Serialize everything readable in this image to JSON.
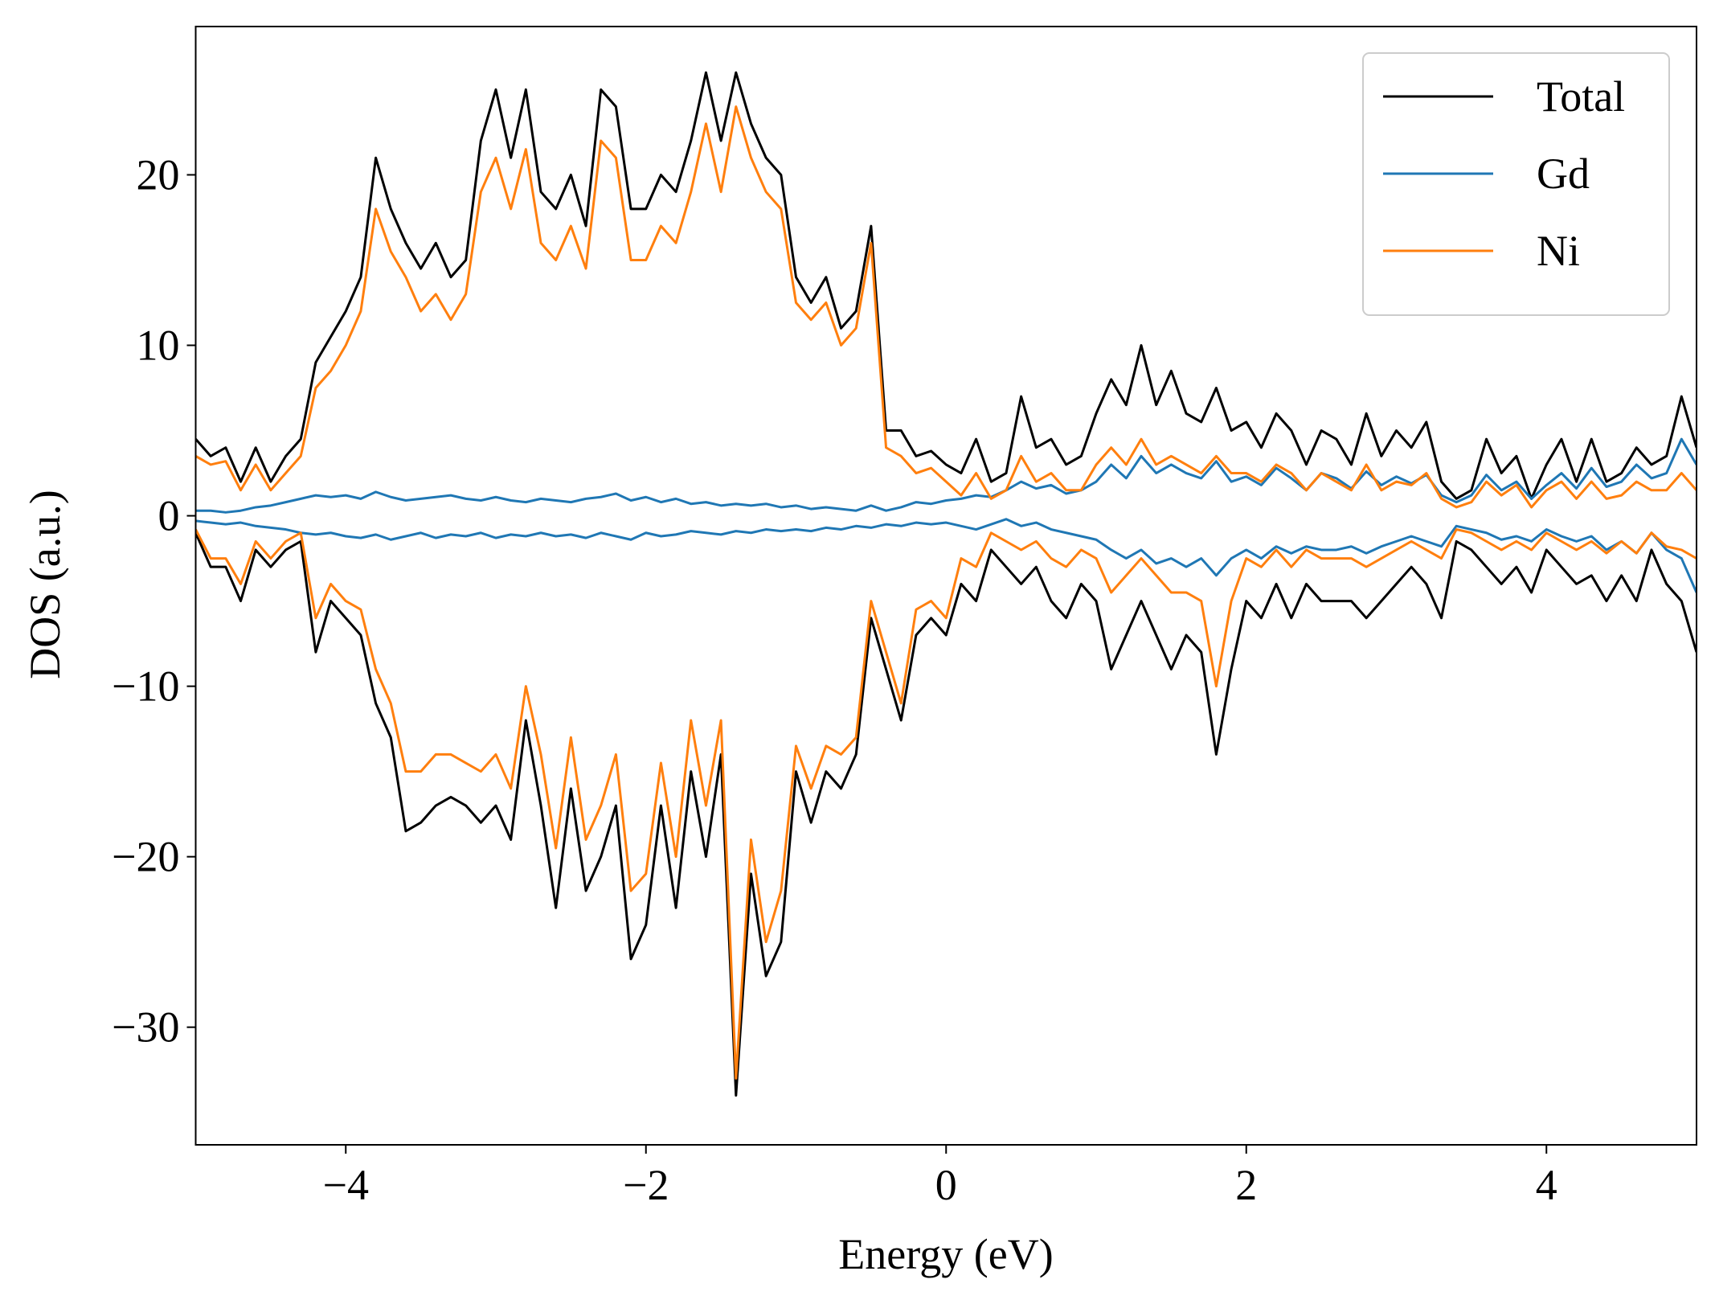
{
  "chart_data": {
    "type": "line",
    "xlabel": "Energy (eV)",
    "ylabel": "DOS (a.u.)",
    "xlim": [
      -5,
      5
    ],
    "ylim": [
      -36.9,
      28.7
    ],
    "xticks": [
      {
        "value": -4,
        "label": "−4"
      },
      {
        "value": -2,
        "label": "−2"
      },
      0,
      2,
      4
    ],
    "yticks": [
      {
        "value": -30,
        "label": "−30"
      },
      {
        "value": -20,
        "label": "−20"
      },
      {
        "value": -10,
        "label": "−10"
      },
      0,
      10,
      20
    ],
    "grid": false,
    "legend": "upper right",
    "x": [
      -5,
      -4.9,
      -4.8,
      -4.7,
      -4.6,
      -4.5,
      -4.4,
      -4.3,
      -4.2,
      -4.1,
      -4,
      -3.9,
      -3.8,
      -3.7,
      -3.6,
      -3.5,
      -3.4,
      -3.3,
      -3.2,
      -3.1,
      -3,
      -2.9,
      -2.8,
      -2.7,
      -2.6,
      -2.5,
      -2.4,
      -2.3,
      -2.2,
      -2.1,
      -2,
      -1.9,
      -1.8,
      -1.7,
      -1.6,
      -1.5,
      -1.4,
      -1.3,
      -1.2,
      -1.1,
      -1,
      -0.9,
      -0.8,
      -0.7,
      -0.6,
      -0.5,
      -0.4,
      -0.3,
      -0.2,
      -0.1,
      0,
      0.1,
      0.2,
      0.3,
      0.4,
      0.5,
      0.6,
      0.7,
      0.8,
      0.9,
      1,
      1.1,
      1.2,
      1.3,
      1.4,
      1.5,
      1.6,
      1.7,
      1.8,
      1.9,
      2,
      2.1,
      2.2,
      2.3,
      2.4,
      2.5,
      2.6,
      2.7,
      2.8,
      2.9,
      3,
      3.1,
      3.2,
      3.3,
      3.4,
      3.5,
      3.6,
      3.7,
      3.8,
      3.9,
      4,
      4.1,
      4.2,
      4.3,
      4.4,
      4.5,
      4.6,
      4.7,
      4.8,
      4.9,
      5
    ],
    "series": [
      {
        "name": "Total",
        "color": "#000000",
        "values": [
          4.5,
          3.5,
          4,
          2,
          4,
          2,
          3.5,
          4.5,
          9,
          10.5,
          12,
          14,
          21,
          18,
          16,
          14.5,
          16,
          14,
          15,
          22,
          25,
          21,
          25,
          19,
          18,
          20,
          17,
          25,
          24,
          18,
          18,
          20,
          19,
          22,
          26,
          22,
          26,
          23,
          21,
          20,
          14,
          12.5,
          14,
          11,
          12,
          17,
          5,
          5,
          3.5,
          3.8,
          3,
          2.5,
          4.5,
          2,
          2.5,
          7,
          4,
          4.5,
          3,
          3.5,
          6,
          8,
          6.5,
          10,
          6.5,
          8.5,
          6,
          5.5,
          7.5,
          5,
          5.5,
          4,
          6,
          5,
          3,
          5,
          4.5,
          3,
          6,
          3.5,
          5,
          4,
          5.5,
          2,
          1,
          1.5,
          4.5,
          2.5,
          3.5,
          1,
          3,
          4.5,
          2,
          4.5,
          2,
          2.5,
          4,
          3,
          3.5,
          7,
          4
        ],
        "values_down": [
          -1,
          -3,
          -3,
          -5,
          -2,
          -3,
          -2,
          -1.5,
          -8,
          -5,
          -6,
          -7,
          -11,
          -13,
          -18.5,
          -18,
          -17,
          -16.5,
          -17,
          -18,
          -17,
          -19,
          -12,
          -17,
          -23,
          -16,
          -22,
          -20,
          -17,
          -26,
          -24,
          -17,
          -23,
          -15,
          -20,
          -14,
          -34,
          -21,
          -27,
          -25,
          -15,
          -18,
          -15,
          -16,
          -14,
          -6,
          -9,
          -12,
          -7,
          -6,
          -7,
          -4,
          -5,
          -2,
          -3,
          -4,
          -3,
          -5,
          -6,
          -4,
          -5,
          -9,
          -7,
          -5,
          -7,
          -9,
          -7,
          -8,
          -14,
          -9,
          -5,
          -6,
          -4,
          -6,
          -4,
          -5,
          -5,
          -5,
          -6,
          -5,
          -4,
          -3,
          -4,
          -6,
          -1.5,
          -2,
          -3,
          -4,
          -3,
          -4.5,
          -2,
          -3,
          -4,
          -3.5,
          -5,
          -3.5,
          -5,
          -2,
          -4,
          -5,
          -8
        ]
      },
      {
        "name": "Gd",
        "color": "#1f77b4",
        "values": [
          0.3,
          0.3,
          0.2,
          0.3,
          0.5,
          0.6,
          0.8,
          1.0,
          1.2,
          1.1,
          1.2,
          1.0,
          1.4,
          1.1,
          0.9,
          1.0,
          1.1,
          1.2,
          1.0,
          0.9,
          1.1,
          0.9,
          0.8,
          1.0,
          0.9,
          0.8,
          1.0,
          1.1,
          1.3,
          0.9,
          1.1,
          0.8,
          1.0,
          0.7,
          0.8,
          0.6,
          0.7,
          0.6,
          0.7,
          0.5,
          0.6,
          0.4,
          0.5,
          0.4,
          0.3,
          0.6,
          0.3,
          0.5,
          0.8,
          0.7,
          0.9,
          1.0,
          1.2,
          1.1,
          1.5,
          2.0,
          1.6,
          1.8,
          1.3,
          1.5,
          2.0,
          3.0,
          2.2,
          3.5,
          2.5,
          3.0,
          2.5,
          2.2,
          3.2,
          2.0,
          2.3,
          1.8,
          2.8,
          2.2,
          1.5,
          2.5,
          2.2,
          1.6,
          2.6,
          1.8,
          2.3,
          1.9,
          2.4,
          1.2,
          0.8,
          1.2,
          2.4,
          1.5,
          2.0,
          1.0,
          1.8,
          2.5,
          1.6,
          2.8,
          1.7,
          2.0,
          3.0,
          2.2,
          2.5,
          4.5,
          3.0
        ],
        "values_down": [
          -0.3,
          -0.4,
          -0.5,
          -0.4,
          -0.6,
          -0.7,
          -0.8,
          -1.0,
          -1.1,
          -1.0,
          -1.2,
          -1.3,
          -1.1,
          -1.4,
          -1.2,
          -1.0,
          -1.3,
          -1.1,
          -1.2,
          -1.0,
          -1.3,
          -1.1,
          -1.2,
          -1.0,
          -1.2,
          -1.1,
          -1.3,
          -1.0,
          -1.2,
          -1.4,
          -1.0,
          -1.2,
          -1.1,
          -0.9,
          -1.0,
          -1.1,
          -0.9,
          -1.0,
          -0.8,
          -0.9,
          -0.8,
          -0.9,
          -0.7,
          -0.8,
          -0.6,
          -0.7,
          -0.5,
          -0.6,
          -0.4,
          -0.5,
          -0.4,
          -0.6,
          -0.8,
          -0.5,
          -0.2,
          -0.6,
          -0.4,
          -0.8,
          -1.0,
          -1.2,
          -1.4,
          -2.0,
          -2.5,
          -2.0,
          -2.8,
          -2.5,
          -3.0,
          -2.5,
          -3.5,
          -2.5,
          -2.0,
          -2.5,
          -1.8,
          -2.2,
          -1.8,
          -2.0,
          -2.0,
          -1.8,
          -2.2,
          -1.8,
          -1.5,
          -1.2,
          -1.5,
          -1.8,
          -0.6,
          -0.8,
          -1.0,
          -1.4,
          -1.2,
          -1.5,
          -0.8,
          -1.2,
          -1.5,
          -1.2,
          -2.0,
          -1.5,
          -2.2,
          -1.0,
          -2.0,
          -2.5,
          -4.5
        ]
      },
      {
        "name": "Ni",
        "color": "#ff7f0e",
        "values": [
          3.5,
          3,
          3.2,
          1.5,
          3,
          1.5,
          2.5,
          3.5,
          7.5,
          8.5,
          10,
          12,
          18,
          15.5,
          14,
          12,
          13,
          11.5,
          13,
          19,
          21,
          18,
          21.5,
          16,
          15,
          17,
          14.5,
          22,
          21,
          15,
          15,
          17,
          16,
          19,
          23,
          19,
          24,
          21,
          19,
          18,
          12.5,
          11.5,
          12.5,
          10,
          11,
          16,
          4,
          3.5,
          2.5,
          2.8,
          2,
          1.2,
          2.5,
          1,
          1.5,
          3.5,
          2,
          2.5,
          1.5,
          1.5,
          3,
          4,
          3,
          4.5,
          3,
          3.5,
          3,
          2.5,
          3.5,
          2.5,
          2.5,
          2,
          3,
          2.5,
          1.5,
          2.5,
          2,
          1.5,
          3,
          1.5,
          2,
          1.8,
          2.5,
          1,
          0.5,
          0.8,
          2,
          1.2,
          1.8,
          0.5,
          1.5,
          2,
          1,
          2,
          1,
          1.2,
          2,
          1.5,
          1.5,
          2.5,
          1.5
        ],
        "values_down": [
          -0.8,
          -2.5,
          -2.5,
          -4,
          -1.5,
          -2.5,
          -1.5,
          -1,
          -6,
          -4,
          -5,
          -5.5,
          -9,
          -11,
          -15,
          -15,
          -14,
          -14,
          -14.5,
          -15,
          -14,
          -16,
          -10,
          -14,
          -19.5,
          -13,
          -19,
          -17,
          -14,
          -22,
          -21,
          -14.5,
          -20,
          -12,
          -17,
          -12,
          -33,
          -19,
          -25,
          -22,
          -13.5,
          -16,
          -13.5,
          -14,
          -13,
          -5,
          -8,
          -11,
          -5.5,
          -5,
          -6,
          -2.5,
          -3,
          -1,
          -1.5,
          -2,
          -1.5,
          -2.5,
          -3,
          -2,
          -2.5,
          -4.5,
          -3.5,
          -2.5,
          -3.5,
          -4.5,
          -4.5,
          -5,
          -10,
          -5,
          -2.5,
          -3,
          -2,
          -3,
          -2,
          -2.5,
          -2.5,
          -2.5,
          -3,
          -2.5,
          -2,
          -1.5,
          -2,
          -2.5,
          -0.8,
          -1,
          -1.5,
          -2,
          -1.5,
          -2,
          -1,
          -1.5,
          -2,
          -1.5,
          -2.2,
          -1.5,
          -2.2,
          -1,
          -1.8,
          -2,
          -2.5
        ]
      }
    ]
  }
}
